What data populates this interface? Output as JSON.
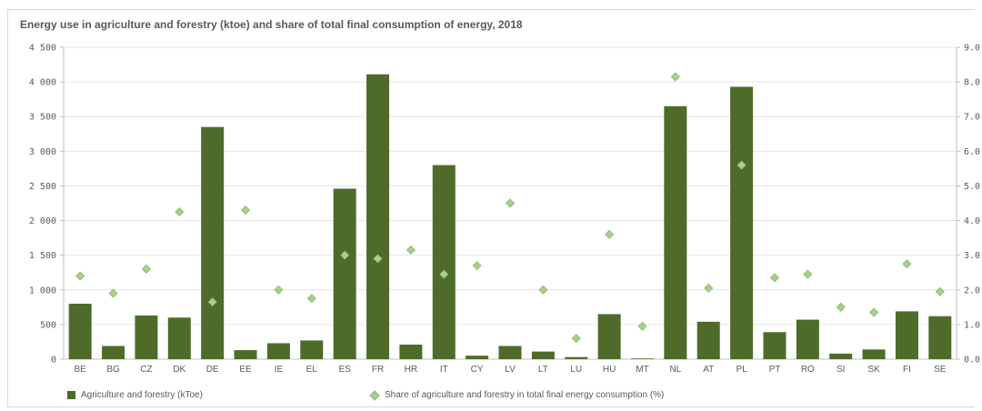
{
  "chart_data": {
    "type": "bar",
    "title": "Energy use in agriculture and forestry (ktoe) and share of total final consumption of energy, 2018",
    "categories": [
      "BE",
      "BG",
      "CZ",
      "DK",
      "DE",
      "EE",
      "IE",
      "EL",
      "ES",
      "FR",
      "HR",
      "IT",
      "CY",
      "LV",
      "LT",
      "LU",
      "HU",
      "MT",
      "NL",
      "AT",
      "PL",
      "PT",
      "RO",
      "SI",
      "SK",
      "FI",
      "SE"
    ],
    "series": [
      {
        "name": "Agriculture and forestry (kToe)",
        "type": "bar",
        "axis": "left",
        "color": "#4e6b2a",
        "values": [
          800,
          190,
          630,
          600,
          3350,
          130,
          230,
          270,
          2460,
          4110,
          210,
          2800,
          50,
          190,
          110,
          30,
          650,
          10,
          3650,
          540,
          3930,
          390,
          570,
          80,
          140,
          690,
          620
        ]
      },
      {
        "name": "Share of agriculture and forestry in total final energy consumption (%)",
        "type": "scatter",
        "axis": "right",
        "color": "#a9cf8a",
        "values": [
          2.4,
          1.9,
          2.6,
          4.25,
          1.65,
          4.3,
          2.0,
          1.75,
          3.0,
          2.9,
          3.15,
          2.45,
          2.7,
          4.5,
          2.0,
          0.6,
          3.6,
          0.95,
          8.15,
          2.05,
          5.6,
          2.35,
          2.45,
          1.5,
          1.35,
          2.75,
          1.95
        ]
      }
    ],
    "y_left": {
      "min": 0,
      "max": 4500,
      "step": 500,
      "tick_labels": [
        "0",
        "500",
        "1 000",
        "1 500",
        "2 000",
        "2 500",
        "3 000",
        "3 500",
        "4 000",
        "4 500"
      ]
    },
    "y_right": {
      "min": 0,
      "max": 9,
      "step": 1,
      "tick_labels": [
        "0.0",
        "1.0",
        "2.0",
        "3.0",
        "4.0",
        "5.0",
        "6.0",
        "7.0",
        "8.0",
        "9.0"
      ]
    },
    "grid": true,
    "legend_position": "bottom"
  }
}
